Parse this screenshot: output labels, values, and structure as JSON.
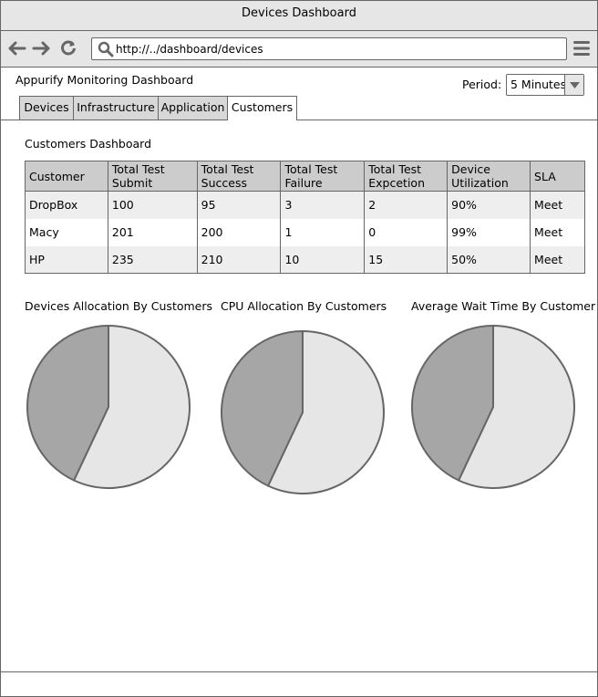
{
  "window": {
    "title": "Devices Dashboard"
  },
  "browser": {
    "url": "http://../dashboard/devices",
    "icons": [
      "back-arrow-icon",
      "forward-arrow-icon",
      "reload-icon",
      "search-icon",
      "hamburger-menu-icon"
    ]
  },
  "header": {
    "app_title": "Appurify Monitoring Dashboard",
    "period_label": "Period:",
    "period_value": "5 Minutes"
  },
  "tabs": [
    {
      "label": "Devices",
      "active": false
    },
    {
      "label": "Infrastructure",
      "active": false
    },
    {
      "label": "Application",
      "active": false
    },
    {
      "label": "Customers",
      "active": true
    }
  ],
  "main": {
    "section_title": "Customers Dashboard",
    "table": {
      "headers": [
        "Customer",
        "Total Test Submit",
        "Total Test Success",
        "Total Test Failure",
        "Total Test Expcetion",
        "Device Utilization",
        "SLA"
      ],
      "header_lines": [
        [
          "Customer",
          ""
        ],
        [
          "Total Test",
          "Submit"
        ],
        [
          "Total Test",
          "Success"
        ],
        [
          "Total Test",
          "Failure"
        ],
        [
          "Total Test",
          "Expcetion"
        ],
        [
          "Device",
          "Utilization"
        ],
        [
          "SLA",
          ""
        ]
      ],
      "rows": [
        [
          "DropBox",
          "100",
          "95",
          "3",
          "2",
          "90%",
          "Meet"
        ],
        [
          "Macy",
          "201",
          "200",
          "1",
          "0",
          "99%",
          "Meet"
        ],
        [
          "HP",
          "235",
          "210",
          "10",
          "15",
          "50%",
          "Meet"
        ]
      ]
    }
  },
  "charts": {
    "colors": {
      "dark_slice": "#a6a6a6",
      "light_slice": "#e6e6e6",
      "stroke": "#666666"
    }
  },
  "chart_data": [
    {
      "type": "pie",
      "title": "Devices Allocation By Customers",
      "values": [
        57,
        43
      ]
    },
    {
      "type": "pie",
      "title": "CPU Allocation By Customers",
      "values": [
        57,
        43
      ]
    },
    {
      "type": "pie",
      "title": "Average Wait Time By Customer",
      "values": [
        57,
        43
      ]
    }
  ]
}
